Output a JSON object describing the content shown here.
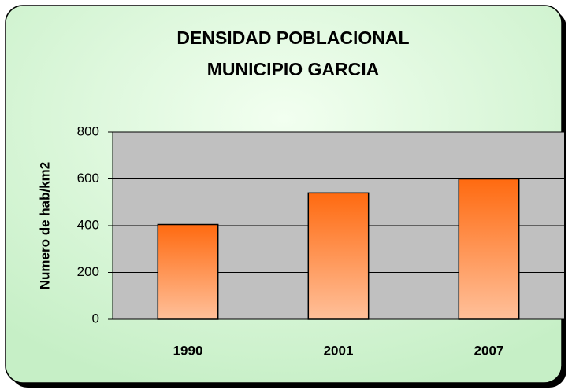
{
  "chart_data": {
    "type": "bar",
    "title": [
      "DENSIDAD POBLACIONAL",
      "MUNICIPIO GARCIA"
    ],
    "y_label": "Numero de hab/km2",
    "categories": [
      "1990",
      "2001",
      "2007"
    ],
    "values": [
      405,
      540,
      600
    ],
    "color": [
      "#ff6a10",
      "#ffc09a"
    ],
    "plot_background": "#c0c0c0",
    "ylim": [
      0,
      800
    ],
    "yticks": [
      0,
      200,
      400,
      600,
      800
    ],
    "grid": true
  }
}
